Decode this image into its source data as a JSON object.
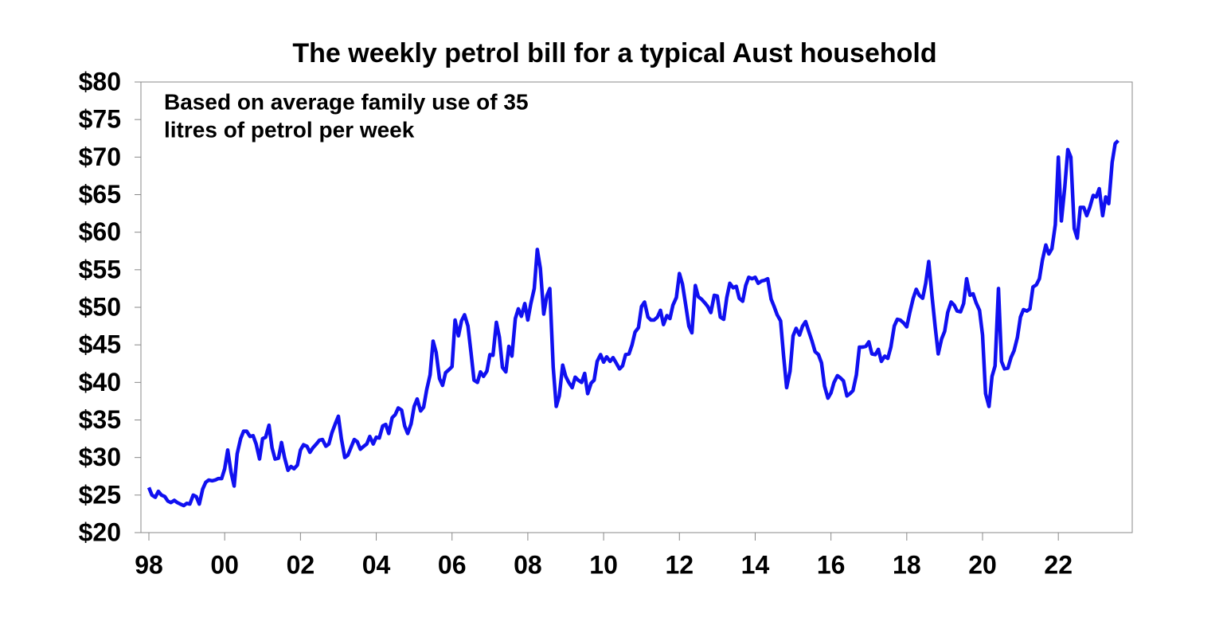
{
  "chart_data": {
    "type": "line",
    "title": "The weekly petrol bill for a typical Aust household",
    "annotation": [
      "Based on average family use of 35",
      "litres of petrol per week"
    ],
    "color": "#1010f0",
    "xlim": [
      1997.79,
      2023.95
    ],
    "ylim": [
      20,
      80
    ],
    "xticks": [
      {
        "value": 1998,
        "label": "98"
      },
      {
        "value": 2000,
        "label": "00"
      },
      {
        "value": 2002,
        "label": "02"
      },
      {
        "value": 2004,
        "label": "04"
      },
      {
        "value": 2006,
        "label": "06"
      },
      {
        "value": 2008,
        "label": "08"
      },
      {
        "value": 2010,
        "label": "10"
      },
      {
        "value": 2012,
        "label": "12"
      },
      {
        "value": 2014,
        "label": "14"
      },
      {
        "value": 2016,
        "label": "16"
      },
      {
        "value": 2018,
        "label": "18"
      },
      {
        "value": 2020,
        "label": "20"
      },
      {
        "value": 2022,
        "label": "22"
      }
    ],
    "yticks": [
      {
        "value": 20,
        "label": "$20"
      },
      {
        "value": 25,
        "label": "$25"
      },
      {
        "value": 30,
        "label": "$30"
      },
      {
        "value": 35,
        "label": "$35"
      },
      {
        "value": 40,
        "label": "$40"
      },
      {
        "value": 45,
        "label": "$45"
      },
      {
        "value": 50,
        "label": "$50"
      },
      {
        "value": 55,
        "label": "$55"
      },
      {
        "value": 60,
        "label": "$60"
      },
      {
        "value": 65,
        "label": "$65"
      },
      {
        "value": 70,
        "label": "$70"
      },
      {
        "value": 75,
        "label": "$75"
      },
      {
        "value": 80,
        "label": "$80"
      }
    ],
    "x": [
      1998.0,
      1998.08,
      1998.17,
      1998.25,
      1998.33,
      1998.42,
      1998.5,
      1998.58,
      1998.67,
      1998.75,
      1998.83,
      1998.92,
      1999.0,
      1999.08,
      1999.17,
      1999.25,
      1999.33,
      1999.42,
      1999.5,
      1999.58,
      1999.67,
      1999.75,
      1999.83,
      1999.92,
      2000.0,
      2000.08,
      2000.17,
      2000.25,
      2000.33,
      2000.42,
      2000.5,
      2000.58,
      2000.67,
      2000.75,
      2000.83,
      2000.92,
      2001.0,
      2001.08,
      2001.17,
      2001.25,
      2001.33,
      2001.42,
      2001.5,
      2001.58,
      2001.67,
      2001.75,
      2001.83,
      2001.92,
      2002.0,
      2002.08,
      2002.17,
      2002.25,
      2002.33,
      2002.42,
      2002.5,
      2002.58,
      2002.67,
      2002.75,
      2002.83,
      2002.92,
      2003.0,
      2003.08,
      2003.17,
      2003.25,
      2003.33,
      2003.42,
      2003.5,
      2003.58,
      2003.67,
      2003.75,
      2003.83,
      2003.92,
      2004.0,
      2004.08,
      2004.17,
      2004.25,
      2004.33,
      2004.42,
      2004.5,
      2004.58,
      2004.67,
      2004.75,
      2004.83,
      2004.92,
      2005.0,
      2005.08,
      2005.17,
      2005.25,
      2005.33,
      2005.42,
      2005.5,
      2005.58,
      2005.67,
      2005.75,
      2005.83,
      2005.92,
      2006.0,
      2006.08,
      2006.17,
      2006.25,
      2006.33,
      2006.42,
      2006.5,
      2006.58,
      2006.67,
      2006.75,
      2006.83,
      2006.92,
      2007.0,
      2007.08,
      2007.17,
      2007.25,
      2007.33,
      2007.42,
      2007.5,
      2007.58,
      2007.67,
      2007.75,
      2007.83,
      2007.92,
      2008.0,
      2008.08,
      2008.17,
      2008.25,
      2008.33,
      2008.42,
      2008.5,
      2008.58,
      2008.67,
      2008.75,
      2008.83,
      2008.92,
      2009.0,
      2009.08,
      2009.17,
      2009.25,
      2009.33,
      2009.42,
      2009.5,
      2009.58,
      2009.67,
      2009.75,
      2009.83,
      2009.92,
      2010.0,
      2010.08,
      2010.17,
      2010.25,
      2010.33,
      2010.42,
      2010.5,
      2010.58,
      2010.67,
      2010.75,
      2010.83,
      2010.92,
      2011.0,
      2011.08,
      2011.17,
      2011.25,
      2011.33,
      2011.42,
      2011.5,
      2011.58,
      2011.67,
      2011.75,
      2011.83,
      2011.92,
      2012.0,
      2012.08,
      2012.17,
      2012.25,
      2012.33,
      2012.42,
      2012.5,
      2012.58,
      2012.67,
      2012.75,
      2012.83,
      2012.92,
      2013.0,
      2013.08,
      2013.17,
      2013.25,
      2013.33,
      2013.42,
      2013.5,
      2013.58,
      2013.67,
      2013.75,
      2013.83,
      2013.92,
      2014.0,
      2014.08,
      2014.17,
      2014.25,
      2014.33,
      2014.42,
      2014.5,
      2014.58,
      2014.67,
      2014.75,
      2014.83,
      2014.92,
      2015.0,
      2015.08,
      2015.17,
      2015.25,
      2015.33,
      2015.42,
      2015.5,
      2015.58,
      2015.67,
      2015.75,
      2015.83,
      2015.92,
      2016.0,
      2016.08,
      2016.17,
      2016.25,
      2016.33,
      2016.42,
      2016.5,
      2016.58,
      2016.67,
      2016.75,
      2016.83,
      2016.92,
      2017.0,
      2017.08,
      2017.17,
      2017.25,
      2017.33,
      2017.42,
      2017.5,
      2017.58,
      2017.67,
      2017.75,
      2017.83,
      2017.92,
      2018.0,
      2018.08,
      2018.17,
      2018.25,
      2018.33,
      2018.42,
      2018.5,
      2018.58,
      2018.67,
      2018.75,
      2018.83,
      2018.92,
      2019.0,
      2019.08,
      2019.17,
      2019.25,
      2019.33,
      2019.42,
      2019.5,
      2019.58,
      2019.67,
      2019.75,
      2019.83,
      2019.92,
      2020.0,
      2020.08,
      2020.17,
      2020.25,
      2020.33,
      2020.42,
      2020.5,
      2020.58,
      2020.67,
      2020.75,
      2020.83,
      2020.92,
      2021.0,
      2021.08,
      2021.17,
      2021.25,
      2021.33,
      2021.42,
      2021.5,
      2021.58,
      2021.67,
      2021.75,
      2021.83,
      2021.92,
      2022.0,
      2022.08,
      2022.17,
      2022.25,
      2022.33,
      2022.42,
      2022.5,
      2022.58,
      2022.67,
      2022.75,
      2022.83,
      2022.92,
      2023.0,
      2023.08,
      2023.17,
      2023.25,
      2023.33,
      2023.42,
      2023.5,
      2023.58
    ],
    "values": [
      26,
      25,
      24.7,
      25.5,
      25,
      24.8,
      24.2,
      24,
      24.3,
      24,
      23.8,
      23.6,
      23.9,
      23.8,
      25,
      24.8,
      23.8,
      25.8,
      26.7,
      27,
      26.9,
      27,
      27.2,
      27.2,
      28.5,
      31,
      28,
      26.2,
      30.5,
      32.5,
      33.5,
      33.5,
      32.8,
      32.9,
      31.8,
      29.8,
      32.5,
      32.7,
      34.3,
      31.3,
      29.8,
      29.9,
      32,
      30,
      28.3,
      28.8,
      28.5,
      29,
      31,
      31.7,
      31.5,
      30.7,
      31.3,
      31.8,
      32.3,
      32.4,
      31.5,
      31.8,
      33.3,
      34.5,
      35.5,
      32.5,
      30,
      30.3,
      31.3,
      32.4,
      32.1,
      31.1,
      31.5,
      31.8,
      32.8,
      31.8,
      32.7,
      32.6,
      34.2,
      34.4,
      33.2,
      35.3,
      35.7,
      36.6,
      36.3,
      34.2,
      33.2,
      34.5,
      36.8,
      37.8,
      36.2,
      36.7,
      39,
      41,
      45.5,
      44,
      40.5,
      39.6,
      41.3,
      41.7,
      42.1,
      48.3,
      46.2,
      48.2,
      49,
      47.5,
      44,
      40.3,
      40,
      41.4,
      40.8,
      41.5,
      43.7,
      43.6,
      48,
      46,
      42,
      41.4,
      44.8,
      43.5,
      48.5,
      49.8,
      48.8,
      50.5,
      48.3,
      50.5,
      52.5,
      57.7,
      55.2,
      49.1,
      51.5,
      52.5,
      42,
      36.8,
      38.2,
      42.3,
      40.8,
      40,
      39.3,
      40.7,
      40.3,
      40,
      41.2,
      38.5,
      39.9,
      40.3,
      42.8,
      43.7,
      42.7,
      43.4,
      42.8,
      43.3,
      42.6,
      41.8,
      42.2,
      43.7,
      43.8,
      45,
      46.7,
      47.3,
      50.1,
      50.7,
      48.7,
      48.3,
      48.3,
      48.7,
      49.6,
      47.7,
      48.9,
      48.5,
      50.3,
      51.3,
      54.5,
      53.1,
      50.2,
      47.5,
      46.6,
      52.9,
      51.4,
      51.1,
      50.6,
      50.1,
      49.3,
      51.6,
      51.5,
      48.7,
      48.4,
      51.3,
      53.2,
      52.6,
      52.8,
      51.2,
      50.8,
      52.9,
      54,
      53.8,
      54,
      53.2,
      53.5,
      53.6,
      53.8,
      51.1,
      50.1,
      49,
      48.2,
      43.5,
      39.3,
      41.5,
      46.2,
      47.2,
      46.3,
      47.5,
      48.1,
      46.7,
      45.5,
      44.1,
      43.7,
      42.6,
      39.5,
      37.9,
      38.6,
      40,
      40.9,
      40.6,
      40.2,
      38.2,
      38.5,
      38.9,
      41,
      44.7,
      44.7,
      44.8,
      45.4,
      43.8,
      43.7,
      44.4,
      42.8,
      43.5,
      43.2,
      44.7,
      47.5,
      48.4,
      48.3,
      47.9,
      47.4,
      49.3,
      51.2,
      52.4,
      51.6,
      51.2,
      53.2,
      56.1,
      51.3,
      47.4,
      43.8,
      45.8,
      46.8,
      49.3,
      50.7,
      50.3,
      49.5,
      49.4,
      50.5,
      53.8,
      51.6,
      51.8,
      50.6,
      49.6,
      46.3,
      38.5,
      36.8,
      40.8,
      42.2,
      52.5,
      42.8,
      41.8,
      41.9,
      43.3,
      44.2,
      46,
      48.7,
      49.7,
      49.5,
      49.8,
      52.7,
      53,
      53.8,
      56.3,
      58.3,
      57.1,
      57.8,
      61,
      70,
      61.5,
      66,
      71,
      70,
      60.5,
      59.2,
      63.3,
      63.3,
      62.2,
      63.3,
      64.9,
      64.7,
      65.8,
      62.2,
      64.7,
      63.8,
      69.3,
      71.8,
      72.2
    ]
  }
}
